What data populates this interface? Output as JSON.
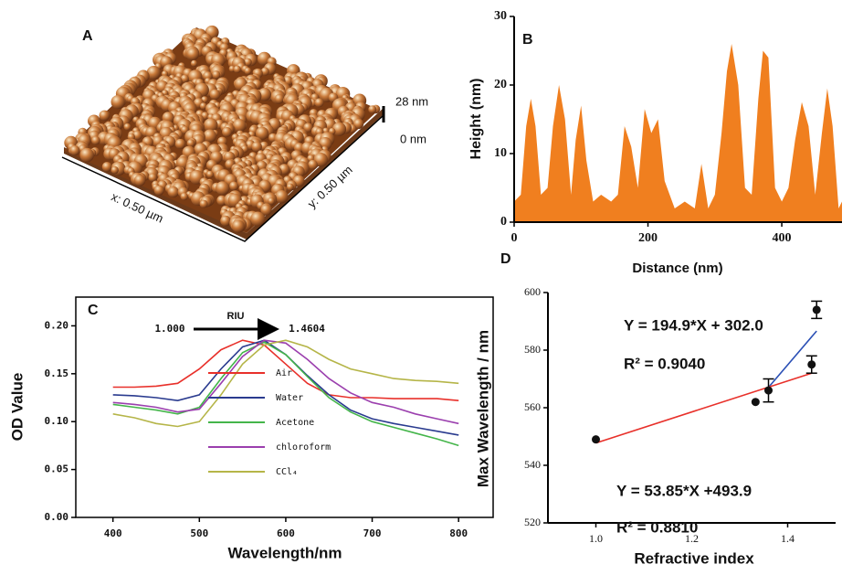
{
  "chart_data": [
    {
      "type": "surface",
      "label": "A",
      "z_labels": [
        "28 nm",
        "0 nm"
      ],
      "x_label": "x: 0.50 µm",
      "y_label": "y: 0.50 µm"
    },
    {
      "type": "area",
      "label": "B",
      "xlabel": "Distance (nm)",
      "ylabel": "Height (nm)",
      "color": "#f07f1f",
      "xlim": [
        0,
        490
      ],
      "ylim": [
        0,
        30
      ],
      "xticks": [
        0,
        200,
        400
      ],
      "yticks": [
        0,
        10,
        20,
        30
      ],
      "x": [
        0,
        10,
        18,
        25,
        32,
        40,
        50,
        58,
        67,
        76,
        85,
        92,
        100,
        108,
        118,
        130,
        145,
        155,
        165,
        175,
        185,
        195,
        205,
        215,
        225,
        240,
        255,
        270,
        280,
        290,
        300,
        310,
        318,
        325,
        335,
        345,
        355,
        365,
        372,
        380,
        390,
        400,
        410,
        420,
        430,
        440,
        450,
        460,
        468,
        476,
        485,
        490
      ],
      "values": [
        3,
        4,
        14,
        18,
        14,
        4,
        5,
        14,
        20,
        15,
        4,
        12,
        17,
        9,
        3,
        4,
        3,
        4,
        14,
        11,
        5,
        16.5,
        13,
        15,
        6,
        2,
        3,
        2,
        8.5,
        2,
        4,
        13,
        22,
        26,
        20,
        5,
        4,
        18,
        25,
        24,
        5,
        3,
        5,
        12,
        17.5,
        14,
        4,
        13,
        19.5,
        14,
        2,
        3
      ]
    },
    {
      "type": "line",
      "label": "C",
      "xlabel": "Wavelength/nm",
      "ylabel": "OD Value",
      "legend": "center",
      "annotations": [
        "RIU",
        "1.000",
        "1.4604"
      ],
      "xlim": [
        357,
        840
      ],
      "ylim": [
        0,
        0.23
      ],
      "xticks": [
        400,
        500,
        600,
        700,
        800
      ],
      "yticks": [
        {
          "value": 0,
          "label": "0.00"
        },
        {
          "value": 0.05,
          "label": "0.05"
        },
        {
          "value": 0.1,
          "label": "0.10"
        },
        {
          "value": 0.15,
          "label": "0.15"
        },
        {
          "value": 0.2,
          "label": "0.20"
        }
      ],
      "x": [
        400,
        425,
        450,
        475,
        500,
        525,
        550,
        575,
        600,
        625,
        650,
        675,
        700,
        725,
        750,
        775,
        800
      ],
      "series": [
        {
          "name": "Air",
          "color": "#e8302a",
          "values": [
            0.136,
            0.136,
            0.137,
            0.14,
            0.155,
            0.175,
            0.185,
            0.18,
            0.16,
            0.14,
            0.128,
            0.125,
            0.125,
            0.124,
            0.124,
            0.124,
            0.122
          ]
        },
        {
          "name": "Water",
          "color": "#2a3b8f",
          "values": [
            0.128,
            0.127,
            0.125,
            0.122,
            0.128,
            0.155,
            0.178,
            0.185,
            0.17,
            0.148,
            0.128,
            0.112,
            0.103,
            0.098,
            0.094,
            0.09,
            0.086
          ]
        },
        {
          "name": "Acetone",
          "color": "#44b54a",
          "values": [
            0.118,
            0.115,
            0.112,
            0.108,
            0.115,
            0.145,
            0.172,
            0.183,
            0.17,
            0.147,
            0.125,
            0.11,
            0.1,
            0.094,
            0.088,
            0.082,
            0.075
          ]
        },
        {
          "name": "chloroform",
          "color": "#9b3fae",
          "values": [
            0.12,
            0.118,
            0.115,
            0.11,
            0.113,
            0.14,
            0.168,
            0.185,
            0.182,
            0.165,
            0.145,
            0.13,
            0.12,
            0.115,
            0.108,
            0.103,
            0.098
          ]
        },
        {
          "name": "CCl₄",
          "color": "#b5b548",
          "values": [
            0.108,
            0.104,
            0.098,
            0.095,
            0.1,
            0.128,
            0.16,
            0.18,
            0.185,
            0.178,
            0.165,
            0.155,
            0.15,
            0.145,
            0.143,
            0.142,
            0.14
          ]
        }
      ]
    },
    {
      "type": "scatter",
      "label": "D",
      "xlabel": "Refractive index",
      "ylabel": "Max Wavelength / nm",
      "xlim": [
        0.9,
        1.5
      ],
      "ylim": [
        520,
        600
      ],
      "xticks": [
        {
          "value": 1.0,
          "label": "1.0"
        },
        1.2,
        1.4
      ],
      "yticks": [
        520,
        540,
        560,
        580,
        600
      ],
      "x": [
        1.0,
        1.333,
        1.36,
        1.45,
        1.4604
      ],
      "values": [
        549,
        562,
        566,
        575,
        594
      ],
      "errors": [
        0,
        0,
        4,
        3,
        3
      ],
      "color": "#111111",
      "fits": [
        {
          "equation": "Y = 194.9*X + 302.0",
          "r2": "R² = 0.9040",
          "slope": 194.9,
          "intercept": 302.0,
          "x_range": [
            1.36,
            1.4604
          ],
          "color": "#2a4fb5"
        },
        {
          "equation": "Y = 53.85*X +493.9",
          "r2": "R² = 0.8810",
          "slope": 53.85,
          "intercept": 493.9,
          "x_range": [
            1.0,
            1.45
          ],
          "color": "#e8302a"
        }
      ]
    }
  ]
}
